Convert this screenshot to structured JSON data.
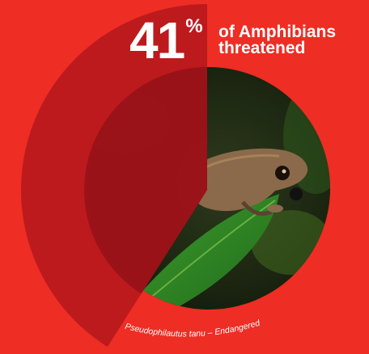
{
  "headline": {
    "percent_value": "41",
    "percent_sign": "%",
    "line1": "of Amphibians",
    "line2": "threatened"
  },
  "caption": "Pseudophilautus tanu – Endangered",
  "photo": {
    "subject_icon": "frog-photo"
  },
  "colors": {
    "background": "#ee2d24",
    "outer_arc": "#b8191d",
    "inner_arc": "#951218",
    "text": "#ffffff"
  },
  "chart_data": {
    "type": "pie",
    "categories": [
      "threatened"
    ],
    "values": [
      41
    ],
    "title": "",
    "unit": "%"
  }
}
